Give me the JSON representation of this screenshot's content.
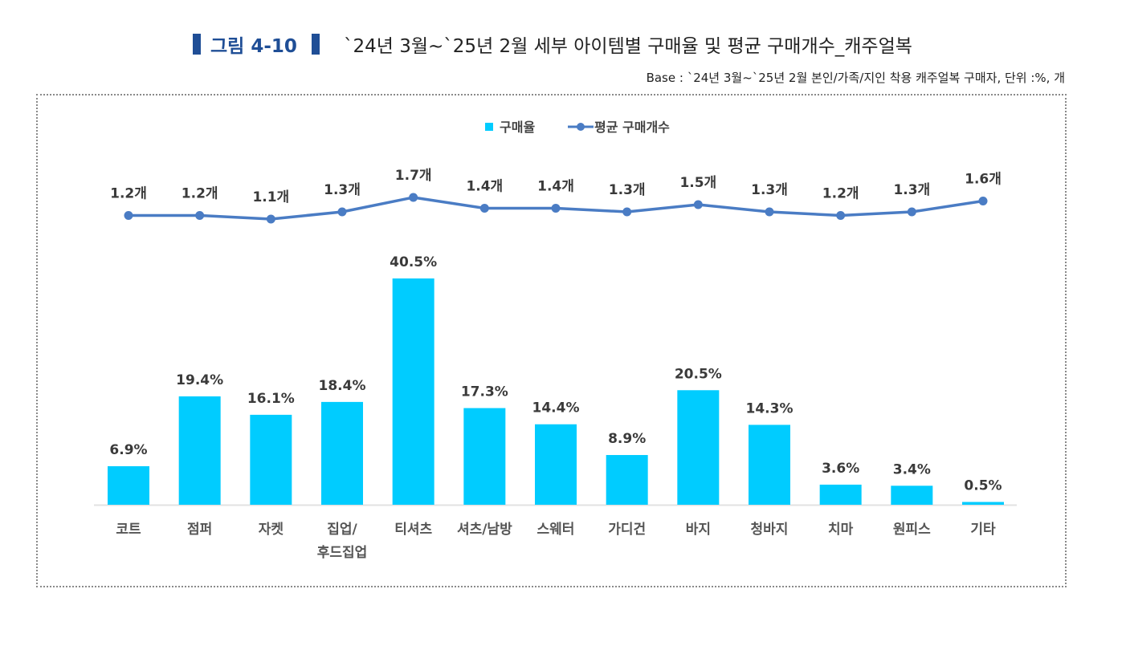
{
  "figure": {
    "number_label": "그림 4-10",
    "title": "`24년 3월~`25년 2월 세부 아이템별 구매율 및 평균 구매개수_캐주얼복",
    "base_note": "Base : `24년 3월~`25년 2월 본인/가족/지인 착용 캐주얼복 구매자, 단위 :%, 개"
  },
  "colors": {
    "bar": "#00ccff",
    "line": "#4a7cc4",
    "title_accent": "#1f4e96"
  },
  "chart_data": {
    "type": "bar+line",
    "title": "`24년 3월~`25년 2월 세부 아이템별 구매율 및 평균 구매개수_캐주얼복",
    "categories": [
      "코트",
      "점퍼",
      "자켓",
      "집업/\n후드집업",
      "티셔츠",
      "셔츠/남방",
      "스웨터",
      "가디건",
      "바지",
      "청바지",
      "치마",
      "원피스",
      "기타"
    ],
    "legend": [
      "구매율",
      "평균 구매개수"
    ],
    "legend_position": "top-center",
    "series": [
      {
        "name": "구매율",
        "type": "bar",
        "unit": "%",
        "values": [
          6.9,
          19.4,
          16.1,
          18.4,
          40.5,
          17.3,
          14.4,
          8.9,
          20.5,
          14.3,
          3.6,
          3.4,
          0.5
        ],
        "labels": [
          "6.9%",
          "19.4%",
          "16.1%",
          "18.4%",
          "40.5%",
          "17.3%",
          "14.4%",
          "8.9%",
          "20.5%",
          "14.3%",
          "3.6%",
          "3.4%",
          "0.5%"
        ]
      },
      {
        "name": "평균 구매개수",
        "type": "line",
        "unit": "개",
        "values": [
          1.2,
          1.2,
          1.1,
          1.3,
          1.7,
          1.4,
          1.4,
          1.3,
          1.5,
          1.3,
          1.2,
          1.3,
          1.6
        ],
        "labels": [
          "1.2개",
          "1.2개",
          "1.1개",
          "1.3개",
          "1.7개",
          "1.4개",
          "1.4개",
          "1.3개",
          "1.5개",
          "1.3개",
          "1.2개",
          "1.3개",
          "1.6개"
        ]
      }
    ],
    "xlabel": "",
    "ylabel": "",
    "grid": false
  }
}
